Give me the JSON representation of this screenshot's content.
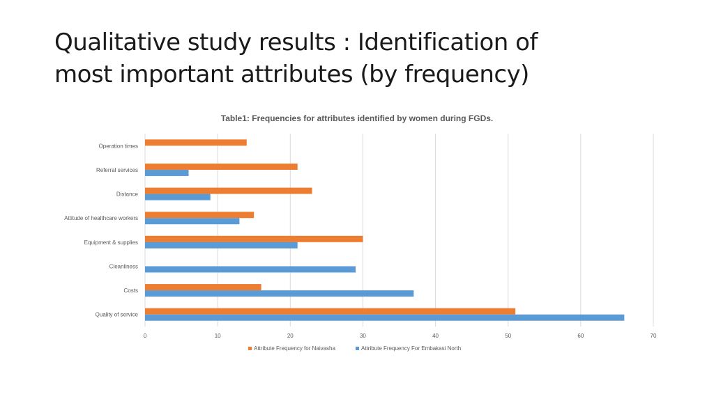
{
  "slide": {
    "title_line1": "Qualitative study results : Identification of",
    "title_line2": "most important attributes (by frequency)"
  },
  "chart_data": {
    "type": "bar",
    "orientation": "horizontal",
    "title": "Table1: Frequencies for attributes identified by women during FGDs.",
    "categories": [
      "Operation times",
      "Referral services",
      "Distance",
      "Attitude of healthcare workers",
      "Equipment & supplies",
      "Cleanliness",
      "Costs",
      "Quality of service"
    ],
    "series": [
      {
        "name": "Attribute Frequency for Naivasha",
        "color": "#ED7D31",
        "values": [
          14,
          21,
          23,
          15,
          30,
          0,
          16,
          51
        ]
      },
      {
        "name": "Attribute Frequency For Embakasi North",
        "color": "#5B9BD5",
        "values": [
          0,
          6,
          9,
          13,
          21,
          29,
          37,
          66
        ]
      }
    ],
    "xlim": [
      0,
      70
    ],
    "xticks": [
      "0",
      "10",
      "20",
      "30",
      "40",
      "50",
      "60",
      "70"
    ],
    "grid": true,
    "legend_position": "bottom"
  }
}
